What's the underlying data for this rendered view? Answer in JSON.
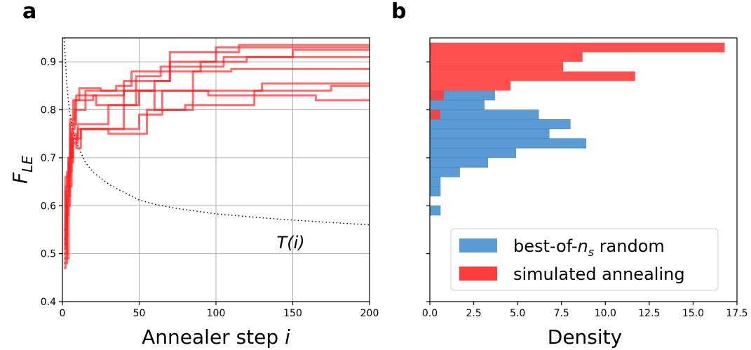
{
  "chart_data": [
    {
      "panel": "a",
      "type": "line",
      "xlabel_text": "Annealer step ",
      "xlabel_var": "i",
      "ylabel_base": "F",
      "ylabel_sub": "LE",
      "xlim": [
        0,
        200
      ],
      "ylim": [
        0.4,
        0.95
      ],
      "xticks": [
        0,
        50,
        100,
        150,
        200
      ],
      "yticks": [
        0.4,
        0.5,
        0.6,
        0.7,
        0.8,
        0.9
      ],
      "grid": true,
      "annotation": {
        "text": "T(i)",
        "x": 145,
        "y": 0.52
      },
      "temperature_curve": [
        [
          1,
          0.95
        ],
        [
          2,
          0.9
        ],
        [
          3,
          0.85
        ],
        [
          4,
          0.815
        ],
        [
          5,
          0.79
        ],
        [
          7,
          0.755
        ],
        [
          10,
          0.725
        ],
        [
          15,
          0.69
        ],
        [
          20,
          0.67
        ],
        [
          30,
          0.645
        ],
        [
          40,
          0.628
        ],
        [
          50,
          0.612
        ],
        [
          60,
          0.603
        ],
        [
          75,
          0.594
        ],
        [
          100,
          0.583
        ],
        [
          125,
          0.576
        ],
        [
          150,
          0.57
        ],
        [
          175,
          0.565
        ],
        [
          200,
          0.56
        ]
      ],
      "series": [
        {
          "x": [
            1,
            2,
            2,
            4,
            4,
            6,
            6,
            8,
            8,
            15,
            15,
            35,
            35,
            45,
            45,
            90,
            90,
            120,
            120,
            200
          ],
          "y": [
            0.47,
            0.47,
            0.63,
            0.63,
            0.7,
            0.7,
            0.76,
            0.76,
            0.8,
            0.8,
            0.84,
            0.84,
            0.85,
            0.85,
            0.88,
            0.88,
            0.9,
            0.9,
            0.91,
            0.91
          ]
        },
        {
          "x": [
            1,
            3,
            3,
            5,
            5,
            10,
            10,
            30,
            30,
            50,
            50,
            85,
            85,
            110,
            110,
            200
          ],
          "y": [
            0.5,
            0.5,
            0.62,
            0.62,
            0.74,
            0.74,
            0.77,
            0.77,
            0.81,
            0.81,
            0.84,
            0.84,
            0.88,
            0.88,
            0.885,
            0.885
          ]
        },
        {
          "x": [
            1,
            2,
            2,
            5,
            5,
            8,
            8,
            20,
            20,
            40,
            40,
            70,
            70,
            100,
            100,
            200
          ],
          "y": [
            0.53,
            0.53,
            0.66,
            0.66,
            0.78,
            0.78,
            0.82,
            0.82,
            0.83,
            0.83,
            0.86,
            0.86,
            0.9,
            0.9,
            0.93,
            0.93
          ]
        },
        {
          "x": [
            1,
            3,
            3,
            6,
            6,
            9,
            9,
            12,
            12,
            40,
            40,
            60,
            60,
            85,
            85,
            130,
            130,
            200
          ],
          "y": [
            0.55,
            0.55,
            0.67,
            0.67,
            0.75,
            0.75,
            0.72,
            0.72,
            0.76,
            0.76,
            0.84,
            0.84,
            0.8,
            0.8,
            0.84,
            0.84,
            0.855,
            0.855
          ]
        },
        {
          "x": [
            1,
            2,
            2,
            4,
            4,
            7,
            7,
            12,
            12,
            50,
            50,
            65,
            65,
            95,
            95,
            165,
            165,
            200
          ],
          "y": [
            0.51,
            0.51,
            0.58,
            0.58,
            0.7,
            0.7,
            0.74,
            0.74,
            0.76,
            0.76,
            0.79,
            0.79,
            0.84,
            0.84,
            0.83,
            0.83,
            0.82,
            0.82
          ]
        },
        {
          "x": [
            1,
            3,
            3,
            5,
            5,
            9,
            9,
            22,
            22,
            48,
            48,
            64,
            64,
            105,
            105,
            150,
            150,
            200
          ],
          "y": [
            0.48,
            0.48,
            0.6,
            0.6,
            0.77,
            0.77,
            0.83,
            0.83,
            0.81,
            0.81,
            0.87,
            0.87,
            0.89,
            0.89,
            0.91,
            0.91,
            0.925,
            0.925
          ]
        },
        {
          "x": [
            1,
            2,
            2,
            6,
            6,
            10,
            10,
            30,
            30,
            55,
            55,
            80,
            80,
            125,
            125,
            175,
            175,
            200
          ],
          "y": [
            0.52,
            0.52,
            0.64,
            0.64,
            0.73,
            0.73,
            0.76,
            0.76,
            0.75,
            0.75,
            0.8,
            0.8,
            0.81,
            0.81,
            0.84,
            0.84,
            0.85,
            0.85
          ]
        },
        {
          "x": [
            1,
            4,
            4,
            7,
            7,
            11,
            11,
            25,
            25,
            60,
            60,
            70,
            70,
            115,
            115,
            200
          ],
          "y": [
            0.49,
            0.49,
            0.69,
            0.69,
            0.82,
            0.82,
            0.845,
            0.845,
            0.84,
            0.84,
            0.86,
            0.86,
            0.92,
            0.92,
            0.935,
            0.935
          ]
        }
      ]
    },
    {
      "panel": "b",
      "type": "bar",
      "orientation": "horizontal",
      "xlabel": "Density",
      "xlim": [
        0,
        17.5
      ],
      "ylim": [
        0.4,
        0.95
      ],
      "xticks": [
        0.0,
        2.5,
        5.0,
        7.5,
        10.0,
        12.5,
        15.0,
        17.5
      ],
      "grid": false,
      "legend_position": "lower-right",
      "bin_width": 0.02,
      "series": [
        {
          "name_parts": [
            "best-of-",
            "n",
            "s",
            " random"
          ],
          "color": "#5b9bd5",
          "bins": [
            [
              0.58,
              0.6
            ],
            [
              0.62,
              0.6
            ],
            [
              0.64,
              0.6
            ],
            [
              0.66,
              1.7
            ],
            [
              0.68,
              3.3
            ],
            [
              0.7,
              4.9
            ],
            [
              0.72,
              8.9
            ],
            [
              0.74,
              6.8
            ],
            [
              0.76,
              8.0
            ],
            [
              0.78,
              6.2
            ],
            [
              0.8,
              3.1
            ],
            [
              0.82,
              3.7
            ]
          ]
        },
        {
          "name": "simulated annealing",
          "color": "#ff3b3b",
          "bins": [
            [
              0.78,
              0.6
            ],
            [
              0.82,
              0.8
            ],
            [
              0.84,
              4.6
            ],
            [
              0.86,
              11.7
            ],
            [
              0.88,
              7.6
            ],
            [
              0.9,
              8.7
            ],
            [
              0.92,
              16.8
            ]
          ]
        }
      ]
    }
  ]
}
